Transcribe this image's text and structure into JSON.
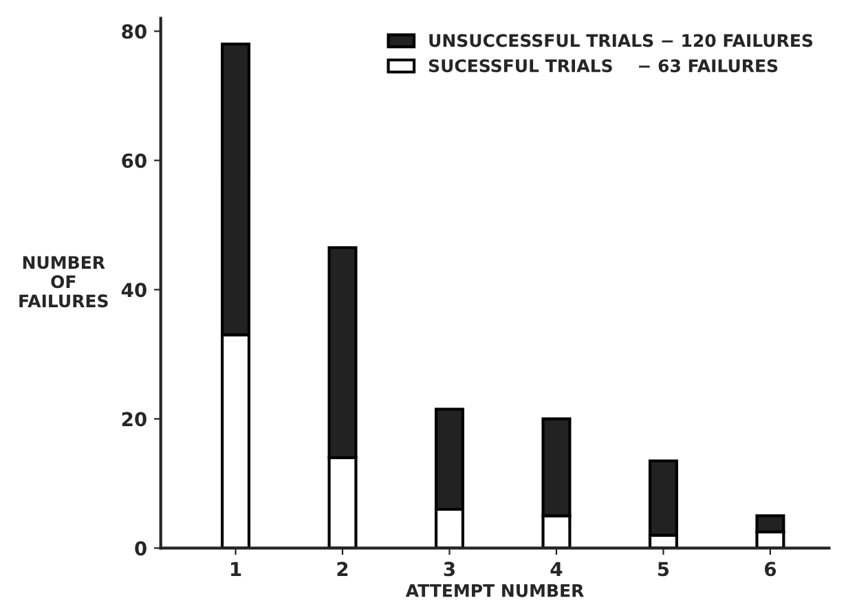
{
  "chart_data": {
    "type": "bar",
    "stacked": true,
    "xlabel": "ATTEMPT NUMBER",
    "ylabel": "NUMBER\nOF\nFAILURES",
    "categories": [
      "1",
      "2",
      "3",
      "4",
      "5",
      "6"
    ],
    "series": [
      {
        "name": "SUCESSFUL TRIALS    − 63 FAILURES",
        "color": "#ffffff",
        "values": [
          33,
          14,
          6,
          5,
          2,
          2.5
        ]
      },
      {
        "name": "UNSUCCESSFUL TRIALS − 120 FAILURES",
        "color": "#222222",
        "values": [
          45,
          32.5,
          15.5,
          15,
          11.5,
          2.5
        ]
      }
    ],
    "ylim": [
      0,
      82
    ],
    "yticks": [
      0,
      20,
      40,
      60,
      80
    ],
    "grid": false,
    "legend": "top right"
  }
}
